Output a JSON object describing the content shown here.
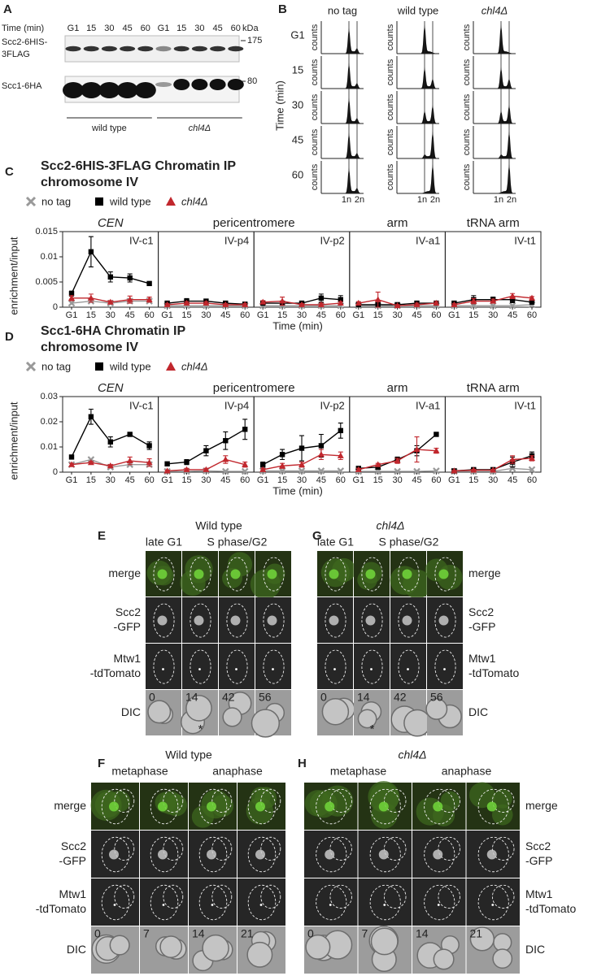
{
  "panel_a": {
    "letter": "A",
    "time_label": "Time (min)",
    "lanes": [
      "G1",
      "15",
      "30",
      "45",
      "60",
      "G1",
      "15",
      "30",
      "45",
      "60"
    ],
    "kda": "kDa",
    "blots": [
      {
        "label": [
          "Scc2-6HIS-",
          "3FLAG"
        ],
        "marker": "175"
      },
      {
        "label": [
          "Scc1-6HA"
        ],
        "marker": "80"
      }
    ],
    "groups": [
      {
        "label": "wild type",
        "italic": false
      },
      {
        "label": "chl4Δ",
        "italic": true
      }
    ]
  },
  "panel_b": {
    "letter": "B",
    "columns": [
      {
        "label": "no tag",
        "italic": false
      },
      {
        "label": "wild type",
        "italic": false
      },
      {
        "label": "chl4Δ",
        "italic": true
      }
    ],
    "rows": [
      "G1",
      "15",
      "30",
      "45",
      "60"
    ],
    "row_axis_label": "Time (min)",
    "y_label": "counts",
    "x_labels": [
      "1n",
      "2n"
    ]
  },
  "chart_data": [
    {
      "type": "line",
      "letter": "C",
      "title": [
        "Scc2-6HIS-3FLAG Chromatin IP",
        "chromosome IV"
      ],
      "legend": [
        {
          "name": "no tag",
          "color": "#999999",
          "marker": "cross"
        },
        {
          "name": "wild type",
          "color": "#000000",
          "marker": "square"
        },
        {
          "name": "chl4Δ",
          "color": "#c1272d",
          "marker": "triangle",
          "italic": true
        }
      ],
      "ylabel": "enrichment/input",
      "xlabel": "Time (min)",
      "categories": [
        "G1",
        "15",
        "30",
        "45",
        "60"
      ],
      "ylim": [
        0,
        0.015
      ],
      "yticks": [
        0,
        0.005,
        0.01,
        0.015
      ],
      "groups": [
        {
          "label": "CEN",
          "color": "#000000",
          "italic": true,
          "subplots": [
            {
              "label": "IV-c1",
              "color": "#222222",
              "series": [
                {
                  "values": [
                    0.0008,
                    0.0012,
                    0.0008,
                    0.0012,
                    0.0012
                  ]
                },
                {
                  "values": [
                    0.0027,
                    0.011,
                    0.006,
                    0.0058,
                    0.0047
                  ],
                  "errors": [
                    0.0005,
                    0.003,
                    0.001,
                    0.0008,
                    0.0003
                  ]
                },
                {
                  "values": [
                    0.0018,
                    0.0018,
                    0.001,
                    0.0015,
                    0.0015
                  ],
                  "errors": [
                    0.0005,
                    0.0008,
                    0.0003,
                    0.0007,
                    0.0005
                  ]
                }
              ]
            }
          ]
        },
        {
          "label": "pericentromere",
          "color": "#2b2b8c",
          "italic": false,
          "subplots": [
            {
              "label": "IV-p4",
              "color": "#2b2b8c",
              "series": [
                {
                  "values": [
                    0.0003,
                    0.0003,
                    0.0003,
                    0.0003,
                    0.0003
                  ]
                },
                {
                  "values": [
                    0.0008,
                    0.0012,
                    0.0012,
                    0.0008,
                    0.0006
                  ],
                  "errors": [
                    0.0003,
                    0.0005,
                    0.0004,
                    0.0003,
                    0.0002
                  ]
                },
                {
                  "values": [
                    0.0005,
                    0.0008,
                    0.0008,
                    0.0005,
                    0.0005
                  ],
                  "errors": [
                    0.0002,
                    0.0003,
                    0.0003,
                    0.0002,
                    0.0002
                  ]
                }
              ]
            },
            {
              "label": "IV-p2",
              "color": "#2b2b8c",
              "series": [
                {
                  "values": [
                    0.0003,
                    0.0003,
                    0.0003,
                    0.0003,
                    0.0003
                  ]
                },
                {
                  "values": [
                    0.0008,
                    0.0008,
                    0.0008,
                    0.0018,
                    0.0015
                  ],
                  "errors": [
                    0.0003,
                    0.0003,
                    0.0003,
                    0.0008,
                    0.0008
                  ]
                },
                {
                  "values": [
                    0.001,
                    0.0012,
                    0.0005,
                    0.0005,
                    0.0008
                  ],
                  "errors": [
                    0.0003,
                    0.0008,
                    0.0002,
                    0.0003,
                    0.0003
                  ]
                }
              ]
            }
          ]
        },
        {
          "label": "arm",
          "color": "#777777",
          "italic": false,
          "subplots": [
            {
              "label": "IV-a1",
              "color": "#777777",
              "series": [
                {
                  "values": [
                    0.0003,
                    0.0003,
                    0.0003,
                    0.0003,
                    0.0003
                  ]
                },
                {
                  "values": [
                    0.0005,
                    0.0005,
                    0.0005,
                    0.0008,
                    0.0008
                  ],
                  "errors": [
                    0.0002,
                    0.0003,
                    0.0002,
                    0.0003,
                    0.0003
                  ]
                },
                {
                  "values": [
                    0.0008,
                    0.0015,
                    0.0003,
                    0.0005,
                    0.0008
                  ],
                  "errors": [
                    0.0003,
                    0.0015,
                    0.0002,
                    0.0003,
                    0.0003
                  ]
                }
              ]
            }
          ]
        },
        {
          "label": "tRNA arm",
          "color": "#777777",
          "italic": false,
          "subplots": [
            {
              "label": "IV-t1",
              "color": "#777777",
              "series": [
                {
                  "values": [
                    0.0003,
                    0.0003,
                    0.0003,
                    0.0003,
                    0.0005
                  ]
                },
                {
                  "values": [
                    0.0008,
                    0.0015,
                    0.0015,
                    0.0015,
                    0.001
                  ],
                  "errors": [
                    0.0003,
                    0.0008,
                    0.0005,
                    0.0006,
                    0.0003
                  ]
                },
                {
                  "values": [
                    0.0005,
                    0.0012,
                    0.0012,
                    0.0022,
                    0.0018
                  ],
                  "errors": [
                    0.0002,
                    0.0005,
                    0.0004,
                    0.0005,
                    0.0003
                  ]
                }
              ]
            }
          ]
        }
      ]
    },
    {
      "type": "line",
      "letter": "D",
      "title": [
        "Scc1-6HA Chromatin IP",
        "chromosome IV"
      ],
      "legend": [
        {
          "name": "no tag",
          "color": "#999999",
          "marker": "cross"
        },
        {
          "name": "wild type",
          "color": "#000000",
          "marker": "square"
        },
        {
          "name": "chl4Δ",
          "color": "#c1272d",
          "marker": "triangle",
          "italic": true
        }
      ],
      "ylabel": "enrichment/input",
      "xlabel": "Time (min)",
      "categories": [
        "G1",
        "15",
        "30",
        "45",
        "60"
      ],
      "ylim": [
        0,
        0.03
      ],
      "yticks": [
        0,
        0.01,
        0.02,
        0.03
      ],
      "groups": [
        {
          "label": "CEN",
          "color": "#000000",
          "italic": true,
          "subplots": [
            {
              "label": "IV-c1",
              "color": "#222222",
              "series": [
                {
                  "values": [
                    0.003,
                    0.005,
                    0.002,
                    0.003,
                    0.003
                  ]
                },
                {
                  "values": [
                    0.006,
                    0.022,
                    0.012,
                    0.015,
                    0.0105
                  ],
                  "errors": [
                    0.0005,
                    0.003,
                    0.002,
                    0.0005,
                    0.0015
                  ]
                },
                {
                  "values": [
                    0.003,
                    0.0038,
                    0.0025,
                    0.0045,
                    0.0038
                  ],
                  "errors": [
                    0.0005,
                    0.0005,
                    0.0005,
                    0.0015,
                    0.0015
                  ]
                }
              ]
            }
          ]
        },
        {
          "label": "pericentromere",
          "color": "#2b2b8c",
          "italic": false,
          "subplots": [
            {
              "label": "IV-p4",
              "color": "#2b2b8c",
              "series": [
                {
                  "values": [
                    0.0003,
                    0.0003,
                    0.0005,
                    0.0003,
                    0.0003
                  ]
                },
                {
                  "values": [
                    0.0033,
                    0.004,
                    0.0085,
                    0.0125,
                    0.017
                  ],
                  "errors": [
                    0.0005,
                    0.001,
                    0.002,
                    0.0035,
                    0.004
                  ]
                },
                {
                  "values": [
                    0.0005,
                    0.001,
                    0.001,
                    0.005,
                    0.003
                  ],
                  "errors": [
                    0.0003,
                    0.0005,
                    0.0005,
                    0.0015,
                    0.001
                  ]
                }
              ]
            },
            {
              "label": "IV-p2",
              "color": "#2b2b8c",
              "series": [
                {
                  "values": [
                    0.0005,
                    0.0005,
                    0.0005,
                    0.0005,
                    0.0005
                  ]
                },
                {
                  "values": [
                    0.003,
                    0.007,
                    0.0095,
                    0.0105,
                    0.0165
                  ],
                  "errors": [
                    0.001,
                    0.002,
                    0.005,
                    0.0045,
                    0.003
                  ]
                },
                {
                  "values": [
                    0.001,
                    0.0025,
                    0.003,
                    0.007,
                    0.0065
                  ],
                  "errors": [
                    0.0005,
                    0.001,
                    0.001,
                    0.002,
                    0.0015
                  ]
                }
              ]
            }
          ]
        },
        {
          "label": "arm",
          "color": "#777777",
          "italic": false,
          "subplots": [
            {
              "label": "IV-a1",
              "color": "#777777",
              "series": [
                {
                  "values": [
                    0.0003,
                    0.0003,
                    0.0003,
                    0.0003,
                    0.0005
                  ]
                },
                {
                  "values": [
                    0.0015,
                    0.002,
                    0.005,
                    0.0085,
                    0.015
                  ],
                  "errors": [
                    0.0005,
                    0.0005,
                    0.001,
                    0.002,
                    0.0005
                  ]
                },
                {
                  "values": [
                    0.001,
                    0.003,
                    0.0045,
                    0.009,
                    0.0085
                  ],
                  "errors": [
                    0.0005,
                    0.0005,
                    0.001,
                    0.005,
                    0.001
                  ]
                }
              ]
            }
          ]
        },
        {
          "label": "tRNA arm",
          "color": "#777777",
          "italic": false,
          "subplots": [
            {
              "label": "IV-t1",
              "color": "#777777",
              "series": [
                {
                  "values": [
                    0.0003,
                    0.0003,
                    0.0003,
                    0.0015,
                    0.001
                  ]
                },
                {
                  "values": [
                    0.0005,
                    0.001,
                    0.001,
                    0.004,
                    0.0065
                  ],
                  "errors": [
                    0.0002,
                    0.0003,
                    0.0003,
                    0.002,
                    0.0015
                  ]
                },
                {
                  "values": [
                    0.0005,
                    0.0008,
                    0.0008,
                    0.005,
                    0.0055
                  ],
                  "errors": [
                    0.0002,
                    0.0003,
                    0.0003,
                    0.0015,
                    0.001
                  ]
                }
              ]
            }
          ]
        }
      ]
    }
  ],
  "microscopy": [
    {
      "letter": "E",
      "title": "Wild type",
      "title_italic": false,
      "phases": [
        "late G1",
        "S phase/G2"
      ],
      "rows": [
        {
          "label": [
            "merge"
          ],
          "color": "#c1272d"
        },
        {
          "label": [
            "Scc2",
            "-GFP"
          ],
          "color": "#3a9d32"
        },
        {
          "label": [
            "Mtw1",
            "-tdTomato"
          ],
          "color": "#c1272d"
        },
        {
          "label": [
            "DIC"
          ],
          "color": "#222222"
        }
      ],
      "times": [
        "0",
        "14",
        "42",
        "56"
      ],
      "asterisk": "*"
    },
    {
      "letter": "F",
      "title": "Wild type",
      "title_italic": false,
      "phases": [
        "metaphase",
        "anaphase"
      ],
      "rows": [
        {
          "label": [
            "merge"
          ],
          "color": "#c1272d"
        },
        {
          "label": [
            "Scc2",
            "-GFP"
          ],
          "color": "#3a9d32"
        },
        {
          "label": [
            "Mtw1",
            "-tdTomato"
          ],
          "color": "#c1272d"
        },
        {
          "label": [
            "DIC"
          ],
          "color": "#222222"
        }
      ],
      "times": [
        "0",
        "7",
        "14",
        "21"
      ]
    },
    {
      "letter": "G",
      "title": "chl4Δ",
      "title_italic": true,
      "phases": [
        "late G1",
        "S phase/G2"
      ],
      "rows": [
        {
          "label": [
            "merge"
          ],
          "color": "#c1272d"
        },
        {
          "label": [
            "Scc2",
            "-GFP"
          ],
          "color": "#3a9d32"
        },
        {
          "label": [
            "Mtw1",
            "-tdTomato"
          ],
          "color": "#c1272d"
        },
        {
          "label": [
            "DIC"
          ],
          "color": "#222222"
        }
      ],
      "times": [
        "0",
        "14",
        "42",
        "56"
      ],
      "asterisk": "*"
    },
    {
      "letter": "H",
      "title": "chl4Δ",
      "title_italic": true,
      "phases": [
        "metaphase",
        "anaphase"
      ],
      "rows": [
        {
          "label": [
            "merge"
          ],
          "color": "#c1272d"
        },
        {
          "label": [
            "Scc2",
            "-GFP"
          ],
          "color": "#3a9d32"
        },
        {
          "label": [
            "Mtw1",
            "-tdTomato"
          ],
          "color": "#c1272d"
        },
        {
          "label": [
            "DIC"
          ],
          "color": "#222222"
        }
      ],
      "times": [
        "0",
        "7",
        "14",
        "21"
      ]
    }
  ]
}
